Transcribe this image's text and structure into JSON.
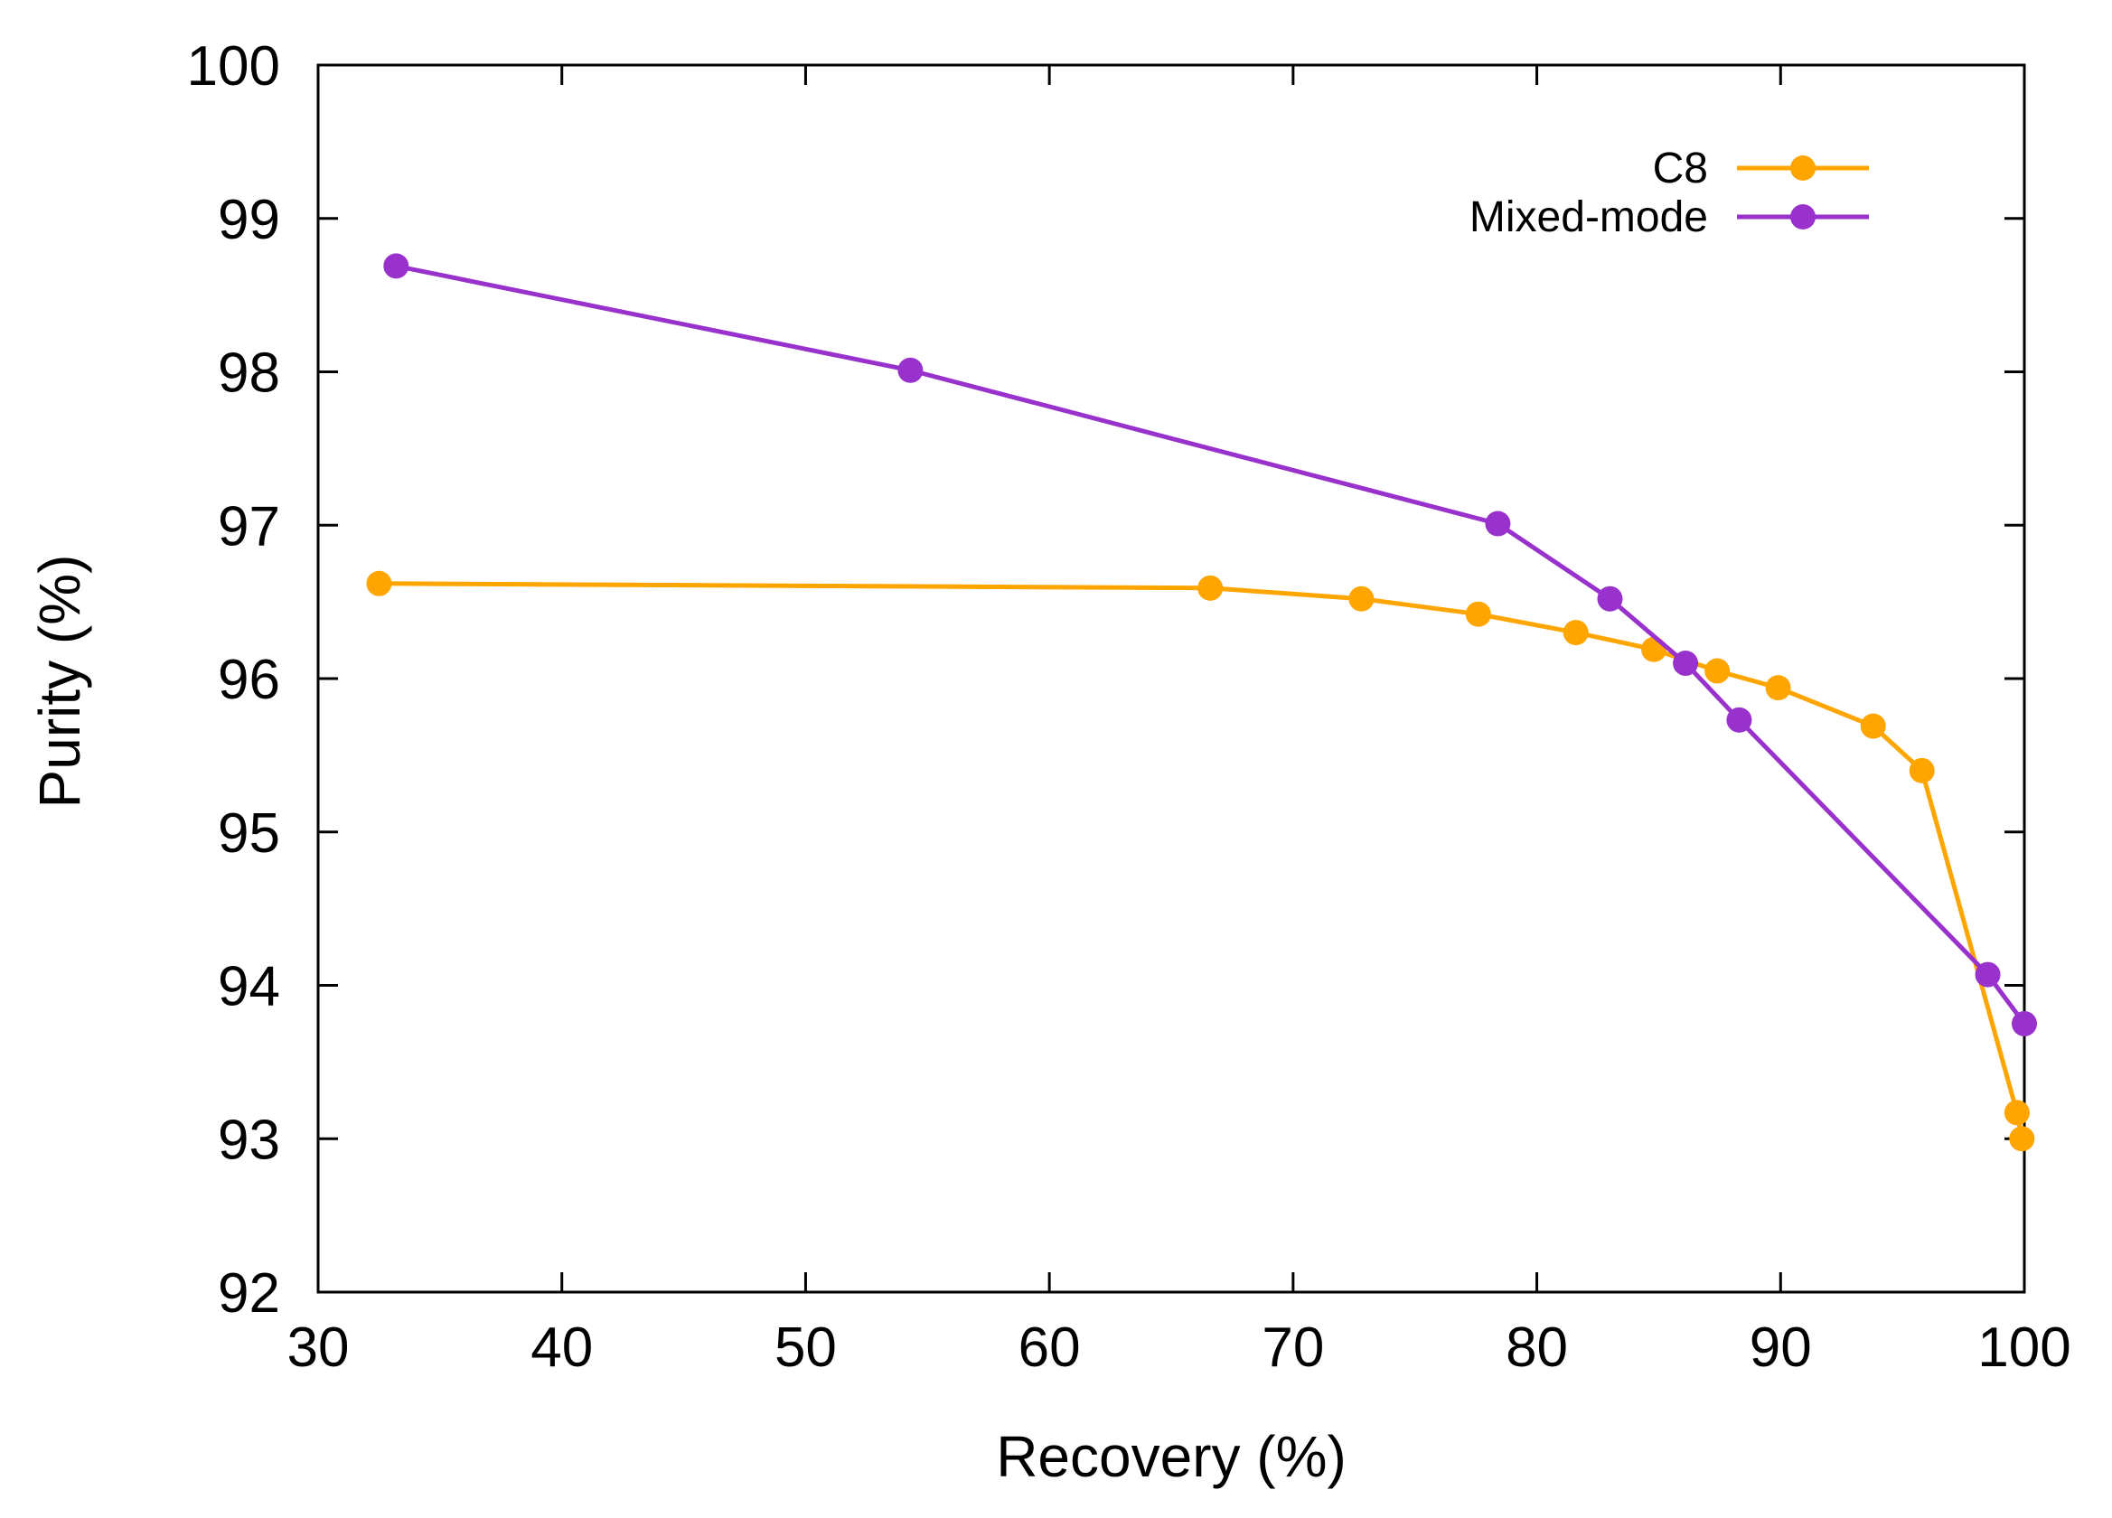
{
  "chart_data": {
    "type": "line",
    "title": "",
    "xlabel": "Recovery (%)",
    "ylabel": "Purity (%)",
    "xlim": [
      30,
      100
    ],
    "ylim": [
      92,
      100
    ],
    "xticks": [
      30,
      40,
      50,
      60,
      70,
      80,
      90,
      100
    ],
    "yticks": [
      92,
      93,
      94,
      95,
      96,
      97,
      98,
      99,
      100
    ],
    "grid": false,
    "legend_position": "top-right",
    "series": [
      {
        "name": "C8",
        "color": "#FFA500",
        "points": [
          [
            32.5,
            96.62
          ],
          [
            66.6,
            96.59
          ],
          [
            72.8,
            96.52
          ],
          [
            77.6,
            96.42
          ],
          [
            81.6,
            96.3
          ],
          [
            84.8,
            96.19
          ],
          [
            87.4,
            96.05
          ],
          [
            89.9,
            95.94
          ],
          [
            93.8,
            95.69
          ],
          [
            95.8,
            95.4
          ],
          [
            99.7,
            93.17
          ],
          [
            99.9,
            93.0
          ]
        ]
      },
      {
        "name": "Mixed-mode",
        "color": "#9932CC",
        "points": [
          [
            33.2,
            98.69
          ],
          [
            54.3,
            98.01
          ],
          [
            78.4,
            97.01
          ],
          [
            83.0,
            96.52
          ],
          [
            86.1,
            96.1
          ],
          [
            88.3,
            95.73
          ],
          [
            98.5,
            94.07
          ],
          [
            100.0,
            93.75
          ]
        ]
      }
    ]
  }
}
